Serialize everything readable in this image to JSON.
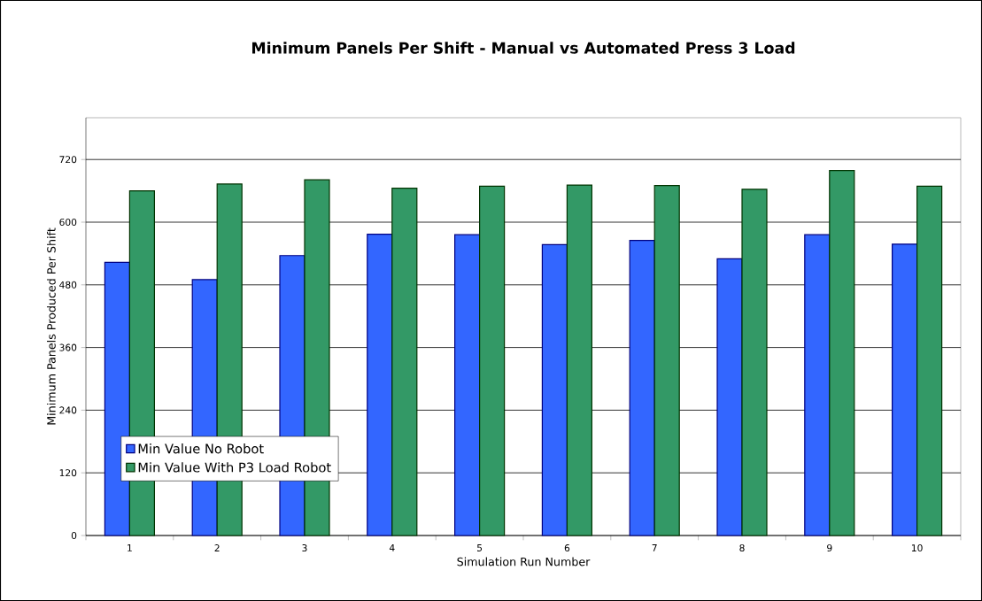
{
  "chart_data": {
    "type": "bar",
    "title": "Minimum Panels Per Shift - Manual vs Automated Press 3 Load",
    "xlabel": "Simulation Run Number",
    "ylabel": "Minimum Panels Produced Per Shift",
    "categories": [
      "1",
      "2",
      "3",
      "4",
      "5",
      "6",
      "7",
      "8",
      "9",
      "10"
    ],
    "series": [
      {
        "name": "Min Value No Robot",
        "color": "#3366ff",
        "values": [
          523,
          490,
          536,
          577,
          576,
          557,
          565,
          530,
          576,
          558
        ]
      },
      {
        "name": "Min Value With P3 Load Robot",
        "color": "#339966",
        "values": [
          660,
          673,
          681,
          665,
          669,
          671,
          670,
          663,
          699,
          669
        ]
      }
    ],
    "ylim": [
      0,
      800
    ],
    "yticks": [
      0,
      120,
      240,
      360,
      480,
      600,
      720
    ],
    "grid": "y",
    "legend": "bottom left"
  }
}
